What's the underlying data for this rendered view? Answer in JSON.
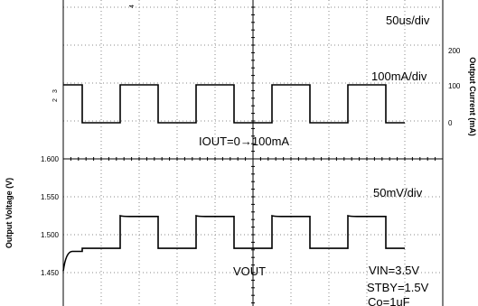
{
  "chart_data": {
    "type": "line",
    "x_unit": "us",
    "x": [
      0,
      25,
      25,
      75,
      75,
      125,
      125,
      175,
      175,
      225,
      225,
      275,
      275,
      325,
      325,
      375,
      375,
      425,
      425,
      450
    ],
    "series": [
      {
        "values": [
          100,
          100,
          0,
          0,
          100,
          100,
          0,
          0,
          100,
          100,
          0,
          0,
          100,
          100,
          0,
          0,
          100,
          100,
          0,
          0
        ]
      },
      {
        "name": "VOUT",
        "values": [
          1.452,
          1.478,
          1.482,
          1.482,
          1.525,
          1.524,
          1.482,
          1.482,
          1.525,
          1.524,
          1.482,
          1.482,
          1.525,
          1.524,
          1.482,
          1.482,
          1.525,
          1.524,
          1.482,
          1.482
        ]
      }
    ],
    "axes": {
      "left": {
        "label": "Output Voltage (V)",
        "range": [
          1.44,
          1.6
        ],
        "ticks": [
          {
            "value": 1.6,
            "label": "1.600"
          },
          {
            "value": 1.55,
            "label": "1.550"
          },
          {
            "value": 1.5,
            "label": "1.500"
          },
          {
            "value": 1.45,
            "label": "1.450"
          }
        ]
      },
      "right": {
        "label": "Output Current (mA)",
        "ticks": [
          {
            "value": 200,
            "label": "200"
          },
          {
            "value": 100,
            "label": "100"
          },
          {
            "value": 0,
            "label": "0"
          }
        ]
      }
    },
    "annotations": {
      "time_div": "50us/div",
      "current_div": "100mA/div",
      "iout": "IOUT=0→100mA",
      "voltage_div": "50mV/div",
      "vout_label": "VOUT",
      "vin": "VIN=3.5V",
      "stby": "STBY=1.5V",
      "co": "Co=1uF"
    },
    "markers": [
      "4",
      "3",
      "2"
    ],
    "grid": true,
    "colors": {
      "trace": "#000000",
      "grid": "#888888"
    }
  }
}
